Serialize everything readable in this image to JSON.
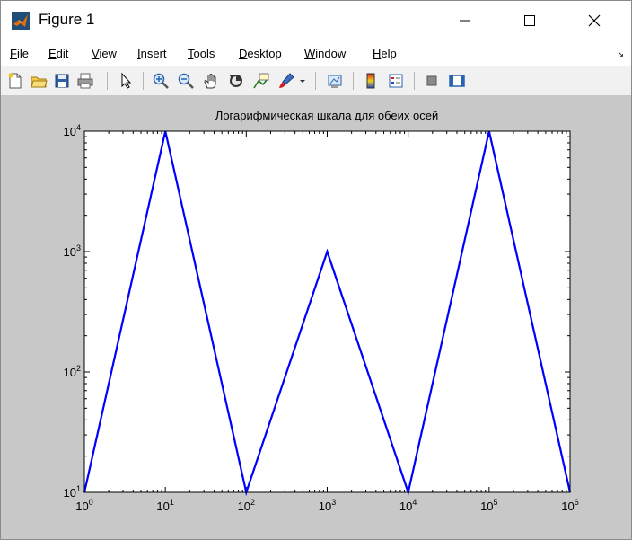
{
  "window": {
    "title": "Figure 1"
  },
  "menu": {
    "items": [
      "File",
      "Edit",
      "View",
      "Insert",
      "Tools",
      "Desktop",
      "Window",
      "Help"
    ]
  },
  "toolbar": {
    "icons": [
      "new-figure-icon",
      "open-file-icon",
      "save-icon",
      "print-icon",
      "edit-plot-arrow-icon",
      "zoom-in-icon",
      "zoom-out-icon",
      "pan-hand-icon",
      "rotate-3d-icon",
      "data-cursor-icon",
      "brush-icon",
      "link-plot-icon",
      "colorbar-icon",
      "legend-icon",
      "hide-plot-tools-icon",
      "show-plot-tools-icon"
    ]
  },
  "colors": {
    "line": "#0000ff",
    "figure_bg": "#c8c8c8",
    "axes_bg": "#ffffff",
    "toolbar_bg": "#f1f1f1"
  },
  "chart_data": {
    "type": "line",
    "title": "Логарифмическая шкала для обеих осей",
    "xlabel": "",
    "ylabel": "",
    "xscale": "log",
    "yscale": "log",
    "xlim": [
      1,
      1000000
    ],
    "ylim": [
      10,
      10000
    ],
    "grid": false,
    "legend": "none",
    "series": [
      {
        "x": [
          1,
          10,
          100,
          1000,
          10000,
          100000,
          1000000
        ],
        "y": [
          10,
          10000,
          10,
          1000,
          10,
          10000,
          10
        ]
      }
    ],
    "x_ticks": [
      {
        "base": "10",
        "exp": "0"
      },
      {
        "base": "10",
        "exp": "1"
      },
      {
        "base": "10",
        "exp": "2"
      },
      {
        "base": "10",
        "exp": "3"
      },
      {
        "base": "10",
        "exp": "4"
      },
      {
        "base": "10",
        "exp": "5"
      },
      {
        "base": "10",
        "exp": "6"
      }
    ],
    "y_ticks": [
      {
        "base": "10",
        "exp": "1"
      },
      {
        "base": "10",
        "exp": "2"
      },
      {
        "base": "10",
        "exp": "3"
      },
      {
        "base": "10",
        "exp": "4"
      }
    ]
  }
}
